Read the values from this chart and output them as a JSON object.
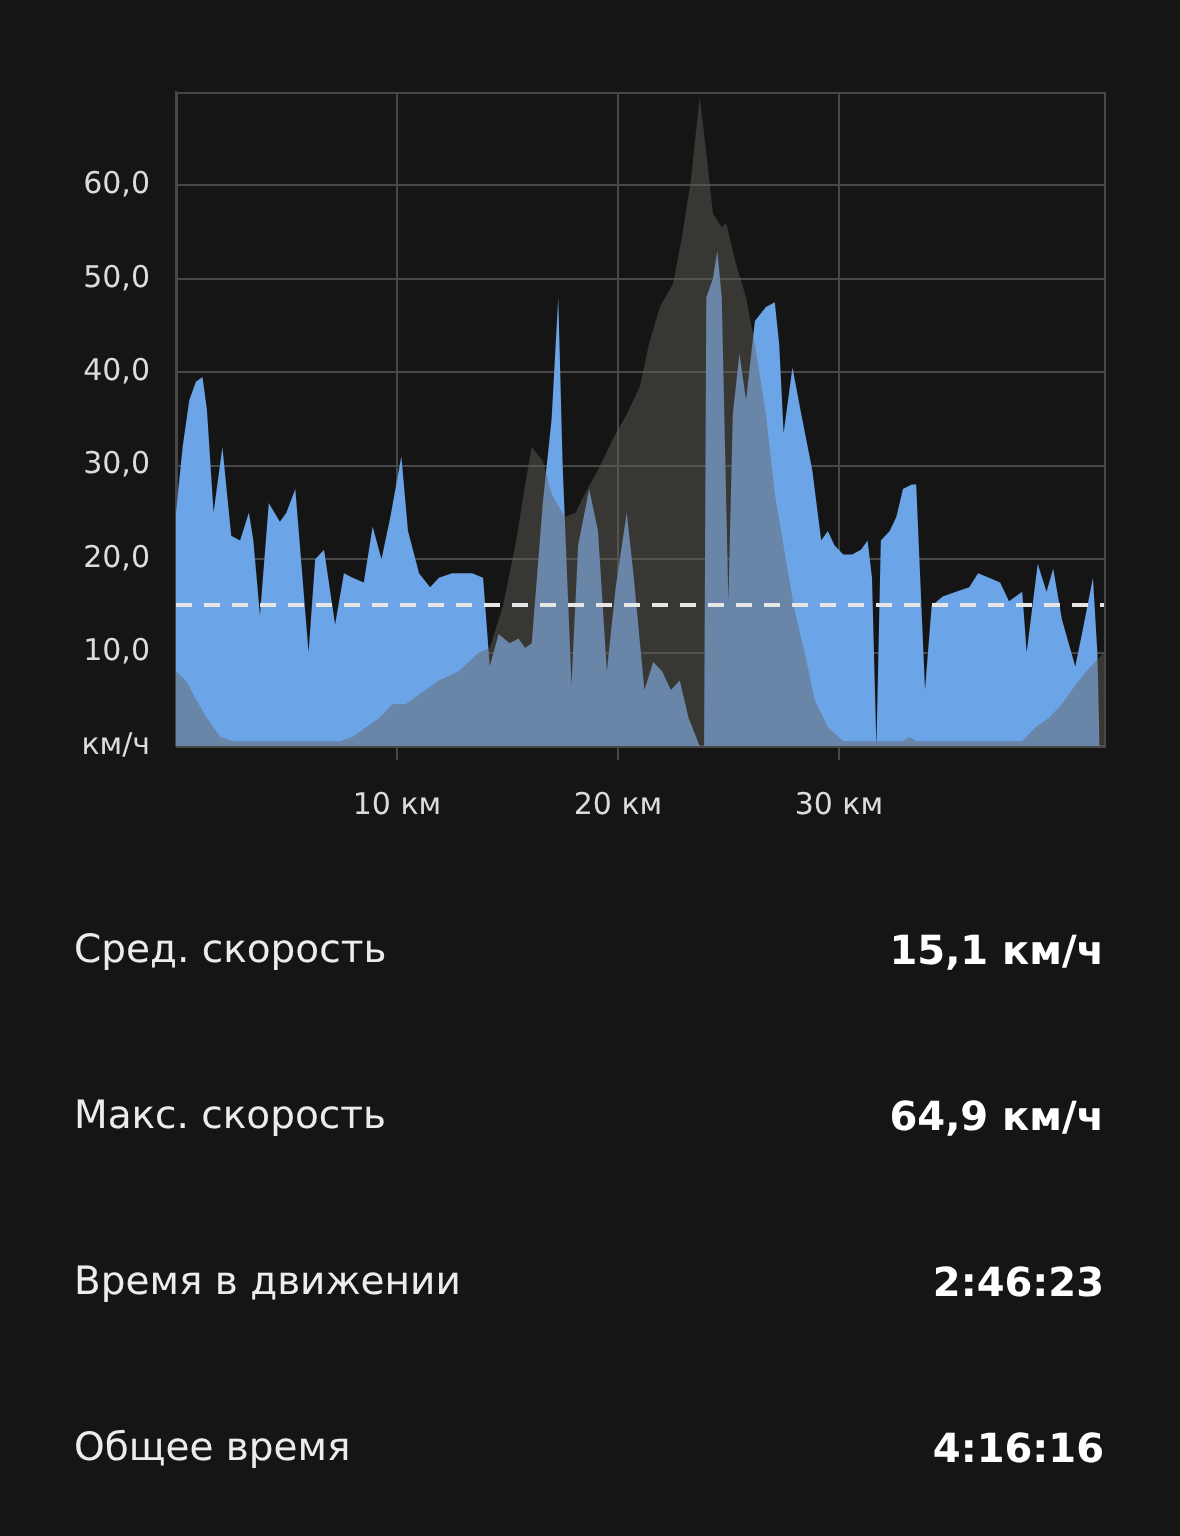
{
  "chart_data": [
    {
      "type": "area",
      "series": [
        {
          "color": "#6ca4e8",
          "x": [
            0,
            0.3,
            0.6,
            0.9,
            1.2,
            1.4,
            1.7,
            2.1,
            2.5,
            2.9,
            3.3,
            3.5,
            3.8,
            4.2,
            4.7,
            5.0,
            5.4,
            6.0,
            6.3,
            6.7,
            7.2,
            7.6,
            8.0,
            8.5,
            8.9,
            9.3,
            9.7,
            10.2,
            10.5,
            11.0,
            11.5,
            11.9,
            12.5,
            13.4,
            13.9,
            14.2,
            14.6,
            15.1,
            15.5,
            15.8,
            16.1,
            16.6,
            17.0,
            17.3,
            17.5,
            17.9,
            18.2,
            18.7,
            19.1,
            19.5,
            19.9,
            20.4,
            20.7,
            21.2,
            21.6,
            22.0,
            22.4,
            22.8,
            23.2,
            23.7,
            23.9,
            24.0,
            24.3,
            24.5,
            24.7,
            25.0,
            25.2,
            25.5,
            25.8,
            26.2,
            26.7,
            27.1,
            27.3,
            27.5,
            27.9,
            28.3,
            28.8,
            29.2,
            29.5,
            29.8,
            30.2,
            30.6,
            31.0,
            31.3,
            31.5,
            31.7,
            31.9,
            32.3,
            32.6,
            32.9,
            33.3,
            33.5,
            33.7,
            33.9,
            34.2,
            34.7,
            35.3,
            35.9,
            36.3,
            36.8,
            37.3,
            37.7,
            38.0,
            38.3,
            38.5,
            39.0,
            39.4,
            39.7,
            40.1,
            40.7,
            41.0,
            41.5,
            41.7,
            41.8
          ],
          "values": [
            25,
            32,
            37,
            39,
            39.5,
            36,
            25,
            32,
            22.5,
            22,
            25,
            22,
            14,
            26,
            24,
            25,
            27.5,
            10,
            20,
            21,
            13,
            18.5,
            18,
            17.5,
            23.5,
            20,
            24.5,
            31,
            23,
            18.5,
            17,
            18,
            18.5,
            18.5,
            18,
            8.5,
            12,
            11,
            11.5,
            10.5,
            11,
            26,
            35,
            48,
            30,
            6.5,
            21.5,
            27.5,
            23,
            8,
            17,
            25,
            18.5,
            6,
            9,
            8,
            6,
            7,
            3,
            0,
            0,
            48,
            50,
            53,
            48,
            15.5,
            35.5,
            42,
            37,
            45.5,
            47,
            47.5,
            43,
            33.5,
            40.5,
            35.5,
            29.5,
            22,
            23,
            21.5,
            20.5,
            20.5,
            21,
            22,
            18,
            0,
            22,
            23,
            24.5,
            27.5,
            28,
            28,
            17,
            6,
            15,
            16,
            16.5,
            17,
            18.5,
            18,
            17.5,
            15.5,
            16,
            16.5,
            10,
            19.5,
            16.5,
            19,
            13.5,
            8.5,
            12,
            18,
            10,
            0
          ]
        },
        {
          "color": "#3a3735",
          "x": [
            0,
            0.45,
            0.9,
            1.4,
            2.0,
            2.6,
            5.3,
            6.2,
            7.4,
            8.0,
            8.6,
            9.2,
            9.8,
            10.4,
            11.0,
            11.9,
            12.8,
            13.7,
            14.2,
            14.8,
            15.4,
            15.8,
            16.1,
            16.6,
            17.0,
            17.6,
            18.1,
            18.5,
            19.2,
            19.8,
            20.4,
            21.0,
            21.4,
            21.9,
            22.5,
            22.9,
            23.3,
            23.7,
            24.0,
            24.3,
            24.7,
            24.9,
            25.3,
            25.8,
            26.2,
            26.7,
            27.1,
            27.6,
            28.0,
            28.5,
            28.9,
            29.5,
            30.2,
            32.9,
            33.2,
            33.5,
            38.3,
            38.9,
            39.5,
            40.1,
            40.7,
            41.2,
            41.8,
            42
          ],
          "values": [
            8,
            7,
            5,
            3,
            1,
            0.5,
            0.5,
            0.5,
            0.5,
            1,
            2,
            3,
            4.5,
            4.5,
            5.5,
            7,
            8,
            10,
            10.5,
            15,
            22,
            28,
            32,
            30.5,
            27,
            24.5,
            25,
            27,
            30,
            33,
            35.5,
            38.5,
            43,
            47,
            49.5,
            54.5,
            60.5,
            69.5,
            63.5,
            57,
            55.5,
            56,
            52,
            48,
            43,
            35.5,
            27,
            20,
            14.5,
            9.5,
            5,
            2,
            0.5,
            0.5,
            1,
            0.5,
            0.5,
            2,
            3,
            4.5,
            6.5,
            8,
            9.5,
            10
          ]
        }
      ],
      "xlim": [
        0,
        42
      ],
      "xticks": [
        {
          "value": 10,
          "label": "10 км"
        },
        {
          "value": 20,
          "label": "20 км"
        },
        {
          "value": 30,
          "label": "30 км"
        }
      ],
      "ylim": [
        0,
        70
      ],
      "yticks": [
        {
          "value": 0,
          "label": "км/ч"
        },
        {
          "value": 10,
          "label": "10,0"
        },
        {
          "value": 20,
          "label": "20,0"
        },
        {
          "value": 30,
          "label": "30,0"
        },
        {
          "value": 40,
          "label": "40,0"
        },
        {
          "value": 50,
          "label": "50,0"
        },
        {
          "value": 60,
          "label": "60,0"
        }
      ],
      "grid": true,
      "marker": "none",
      "ref_lines": [
        {
          "axis": "y",
          "value": 15.1,
          "color": "#e6e6e6",
          "line_style": "dashed"
        }
      ]
    },
    {
      "type": "other",
      "annotations": [
        "Сред. скорость",
        "15,1 км/ч",
        "Макс. скорость",
        "64,9 км/ч",
        "Время в движении",
        "2:46:23",
        "Общее время",
        "4:16:16"
      ]
    }
  ]
}
